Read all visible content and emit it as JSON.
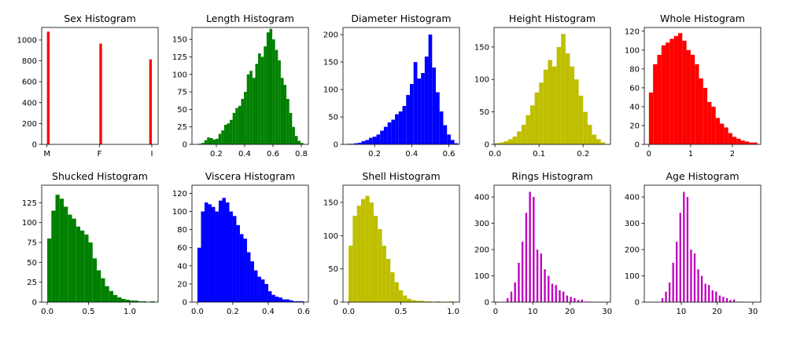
{
  "chart_data": [
    {
      "type": "histogram",
      "title": "Sex Histogram",
      "color": "#ff0000",
      "bins": [
        0,
        0.05,
        0.1,
        0.15,
        0.2,
        0.25,
        0.3,
        0.35,
        0.4,
        0.45,
        0.5,
        0.55,
        0.6,
        0.65,
        0.7,
        0.75,
        0.8,
        0.85,
        0.9,
        0.95,
        1,
        1.05,
        1.1,
        1.15,
        1.2,
        1.25,
        1.3,
        1.35,
        1.4,
        1.45,
        1.5,
        1.55,
        1.6,
        1.65,
        1.7,
        1.75,
        1.8,
        1.85,
        1.9,
        1.95,
        2
      ],
      "values": [
        1080,
        0,
        0,
        0,
        0,
        0,
        0,
        0,
        0,
        0,
        0,
        0,
        0,
        0,
        0,
        0,
        0,
        0,
        0,
        0,
        965,
        0,
        0,
        0,
        0,
        0,
        0,
        0,
        0,
        0,
        0,
        0,
        0,
        0,
        0,
        0,
        0,
        0,
        0,
        815
      ],
      "xlim": [
        -0.1,
        2.12
      ],
      "xticks": [
        {
          "value": 0,
          "label": "M"
        },
        {
          "value": 1,
          "label": "F"
        },
        {
          "value": 2,
          "label": "I"
        }
      ],
      "ylim": [
        0,
        1120
      ],
      "yticks": [
        0,
        200,
        400,
        600,
        800,
        1000
      ]
    },
    {
      "type": "histogram",
      "title": "Length Histogram",
      "color": "#008000",
      "bins": [
        0.075,
        0.095,
        0.115,
        0.135,
        0.155,
        0.175,
        0.195,
        0.215,
        0.235,
        0.255,
        0.275,
        0.295,
        0.315,
        0.335,
        0.355,
        0.375,
        0.395,
        0.415,
        0.435,
        0.455,
        0.475,
        0.495,
        0.515,
        0.535,
        0.555,
        0.575,
        0.595,
        0.615,
        0.635,
        0.655,
        0.675,
        0.695,
        0.715,
        0.735,
        0.755,
        0.775,
        0.795,
        0.815
      ],
      "values": [
        1,
        2,
        6,
        10,
        9,
        7,
        8,
        15,
        20,
        28,
        30,
        35,
        45,
        52,
        55,
        65,
        75,
        100,
        105,
        95,
        115,
        130,
        125,
        140,
        160,
        165,
        150,
        135,
        120,
        95,
        85,
        65,
        45,
        25,
        12,
        5,
        2
      ],
      "xlim": [
        0.028,
        0.85
      ],
      "xticks": [
        0.2,
        0.4,
        0.6,
        0.8
      ],
      "ylim": [
        0,
        167
      ],
      "yticks": [
        0,
        25,
        50,
        75,
        100,
        125,
        150
      ]
    },
    {
      "type": "histogram",
      "title": "Diameter Histogram",
      "color": "#0000ff",
      "bins": [
        0.05,
        0.07,
        0.09,
        0.11,
        0.13,
        0.15,
        0.17,
        0.19,
        0.21,
        0.23,
        0.25,
        0.27,
        0.29,
        0.31,
        0.33,
        0.35,
        0.37,
        0.39,
        0.41,
        0.43,
        0.45,
        0.47,
        0.49,
        0.51,
        0.53,
        0.55,
        0.57,
        0.59,
        0.61,
        0.63,
        0.65
      ],
      "values": [
        1,
        1,
        2,
        3,
        6,
        8,
        12,
        14,
        18,
        25,
        32,
        40,
        45,
        55,
        60,
        70,
        90,
        110,
        150,
        120,
        130,
        160,
        200,
        140,
        95,
        60,
        35,
        18,
        8,
        2
      ],
      "xlim": [
        0.03,
        0.657
      ],
      "xticks": [
        0.2,
        0.4,
        0.6
      ],
      "ylim": [
        0,
        213
      ],
      "yticks": [
        0,
        50,
        100,
        150,
        200
      ]
    },
    {
      "type": "histogram",
      "title": "Height Histogram",
      "color": "#bfbf00",
      "bins": [
        0,
        0.01,
        0.02,
        0.03,
        0.04,
        0.05,
        0.06,
        0.07,
        0.08,
        0.09,
        0.1,
        0.11,
        0.12,
        0.13,
        0.14,
        0.15,
        0.16,
        0.17,
        0.18,
        0.19,
        0.2,
        0.21,
        0.22,
        0.23,
        0.24,
        0.25
      ],
      "values": [
        2,
        3,
        5,
        8,
        12,
        20,
        30,
        45,
        60,
        80,
        95,
        115,
        130,
        120,
        150,
        170,
        140,
        120,
        100,
        75,
        50,
        30,
        15,
        8,
        3
      ],
      "xlim": [
        -0.002,
        0.262
      ],
      "xticks": [
        {
          "value": 0,
          "label": "0.0"
        },
        0.1,
        0.2
      ],
      "ylim": [
        0,
        180
      ],
      "yticks": [
        0,
        50,
        100,
        150
      ]
    },
    {
      "type": "histogram",
      "title": "Whole Histogram",
      "color": "#ff0000",
      "bins": [
        0,
        0.1,
        0.2,
        0.3,
        0.4,
        0.5,
        0.6,
        0.7,
        0.8,
        0.9,
        1,
        1.1,
        1.2,
        1.3,
        1.4,
        1.5,
        1.6,
        1.7,
        1.8,
        1.9,
        2,
        2.1,
        2.2,
        2.3,
        2.4,
        2.5,
        2.6
      ],
      "values": [
        55,
        85,
        95,
        105,
        108,
        112,
        115,
        118,
        110,
        100,
        95,
        85,
        70,
        60,
        45,
        40,
        28,
        22,
        18,
        12,
        8,
        6,
        4,
        3,
        2,
        2
      ],
      "xlim": [
        -0.11,
        2.68
      ],
      "xticks": [
        0,
        1,
        2
      ],
      "ylim": [
        0,
        124
      ],
      "yticks": [
        0,
        20,
        40,
        60,
        80,
        100,
        120
      ]
    },
    {
      "type": "histogram",
      "title": "Shucked Histogram",
      "color": "#008000",
      "bins": [
        0,
        0.05,
        0.1,
        0.15,
        0.2,
        0.25,
        0.3,
        0.35,
        0.4,
        0.45,
        0.5,
        0.55,
        0.6,
        0.65,
        0.7,
        0.75,
        0.8,
        0.85,
        0.9,
        0.95,
        1,
        1.05,
        1.1,
        1.15,
        1.2,
        1.25,
        1.3
      ],
      "values": [
        80,
        115,
        135,
        130,
        120,
        110,
        105,
        95,
        90,
        85,
        75,
        55,
        40,
        30,
        20,
        14,
        9,
        6,
        4,
        3,
        2,
        2,
        1,
        1,
        0,
        1
      ],
      "xlim": [
        -0.067,
        1.343
      ],
      "xticks": [
        {
          "value": 0,
          "label": "0.0"
        },
        0.5,
        {
          "value": 1,
          "label": "1.0"
        }
      ],
      "ylim": [
        0,
        147
      ],
      "yticks": [
        0,
        25,
        50,
        75,
        100,
        125
      ]
    },
    {
      "type": "histogram",
      "title": "Viscera Histogram",
      "color": "#0000ff",
      "bins": [
        0,
        0.02,
        0.04,
        0.06,
        0.08,
        0.1,
        0.12,
        0.14,
        0.16,
        0.18,
        0.2,
        0.22,
        0.24,
        0.26,
        0.28,
        0.3,
        0.32,
        0.34,
        0.36,
        0.38,
        0.4,
        0.42,
        0.44,
        0.46,
        0.48,
        0.5,
        0.52,
        0.54,
        0.56,
        0.58,
        0.6
      ],
      "values": [
        60,
        100,
        110,
        108,
        105,
        100,
        112,
        115,
        110,
        100,
        95,
        85,
        75,
        70,
        55,
        45,
        35,
        28,
        25,
        20,
        12,
        8,
        6,
        5,
        3,
        3,
        2,
        1,
        1,
        1
      ],
      "xlim": [
        -0.031,
        0.627
      ],
      "xticks": [
        {
          "value": 0,
          "label": "0.0"
        },
        0.2,
        0.4,
        0.6
      ],
      "ylim": [
        0,
        129
      ],
      "yticks": [
        0,
        20,
        40,
        60,
        80,
        100,
        120
      ]
    },
    {
      "type": "histogram",
      "title": "Shell Histogram",
      "color": "#bfbf00",
      "bins": [
        0,
        0.04,
        0.08,
        0.12,
        0.16,
        0.2,
        0.24,
        0.28,
        0.32,
        0.36,
        0.4,
        0.44,
        0.48,
        0.52,
        0.56,
        0.6,
        0.64,
        0.68,
        0.72,
        0.76,
        0.8,
        0.84,
        0.88,
        0.92,
        0.96,
        1
      ],
      "values": [
        85,
        130,
        145,
        155,
        160,
        150,
        130,
        110,
        85,
        65,
        45,
        30,
        18,
        10,
        5,
        3,
        2,
        2,
        1,
        1,
        0,
        1,
        0,
        0,
        1
      ],
      "xlim": [
        -0.053,
        1.06
      ],
      "xticks": [
        {
          "value": 0,
          "label": "0.0"
        },
        0.5,
        {
          "value": 1,
          "label": "1.0"
        }
      ],
      "ylim": [
        0,
        176
      ],
      "yticks": [
        0,
        50,
        100,
        150
      ]
    },
    {
      "type": "histogram",
      "title": "Rings Histogram",
      "color": "#bf00bf",
      "bins": [
        1,
        1.5,
        2,
        2.5,
        3,
        3.5,
        4,
        4.5,
        5,
        5.5,
        6,
        6.5,
        7,
        7.5,
        8,
        8.5,
        9,
        9.5,
        10,
        10.5,
        11,
        11.5,
        12,
        12.5,
        13,
        13.5,
        14,
        14.5,
        15,
        15.5,
        16,
        16.5,
        17,
        17.5,
        18,
        18.5,
        19,
        19.5,
        20,
        20.5,
        21,
        21.5,
        22,
        22.5,
        23,
        23.5,
        24,
        24.5,
        25,
        25.5,
        26,
        26.5,
        27,
        27.5,
        28,
        28.5,
        29,
        29.5
      ],
      "values": [
        1,
        0,
        1,
        0,
        15,
        0,
        40,
        0,
        75,
        0,
        150,
        0,
        230,
        0,
        340,
        0,
        420,
        0,
        400,
        0,
        200,
        0,
        185,
        0,
        125,
        0,
        100,
        0,
        70,
        0,
        65,
        0,
        45,
        0,
        40,
        0,
        25,
        0,
        20,
        0,
        15,
        0,
        8,
        0,
        10,
        0,
        2,
        0,
        2,
        0,
        1,
        0,
        1,
        0,
        0,
        0,
        1
      ],
      "xlim": [
        -0.4,
        30.9
      ],
      "xticks": [
        0,
        10,
        20,
        30
      ],
      "ylim": [
        0,
        445
      ],
      "yticks": [
        0,
        100,
        200,
        300,
        400
      ]
    },
    {
      "type": "histogram",
      "title": "Age Histogram",
      "color": "#bf00bf",
      "bins": [
        2.5,
        3,
        3.5,
        4,
        4.5,
        5,
        5.5,
        6,
        6.5,
        7,
        7.5,
        8,
        8.5,
        9,
        9.5,
        10,
        10.5,
        11,
        11.5,
        12,
        12.5,
        13,
        13.5,
        14,
        14.5,
        15,
        15.5,
        16,
        16.5,
        17,
        17.5,
        18,
        18.5,
        19,
        19.5,
        20,
        20.5,
        21,
        21.5,
        22,
        22.5,
        23,
        23.5,
        24,
        24.5,
        25,
        25.5,
        26,
        26.5,
        27,
        27.5,
        28,
        28.5,
        29,
        29.5,
        30,
        30.5,
        31
      ],
      "values": [
        1,
        0,
        1,
        0,
        15,
        0,
        40,
        0,
        75,
        0,
        150,
        0,
        230,
        0,
        340,
        0,
        420,
        0,
        400,
        0,
        200,
        0,
        185,
        0,
        125,
        0,
        100,
        0,
        70,
        0,
        65,
        0,
        45,
        0,
        40,
        0,
        25,
        0,
        20,
        0,
        15,
        0,
        8,
        0,
        10,
        0,
        2,
        0,
        2,
        0,
        1,
        0,
        1,
        0,
        0,
        0,
        1
      ],
      "xlim": [
        -0.3,
        32.2
      ],
      "xticks": [
        10,
        20,
        30
      ],
      "ylim": [
        0,
        445
      ],
      "yticks": [
        0,
        100,
        200,
        300,
        400
      ]
    }
  ]
}
